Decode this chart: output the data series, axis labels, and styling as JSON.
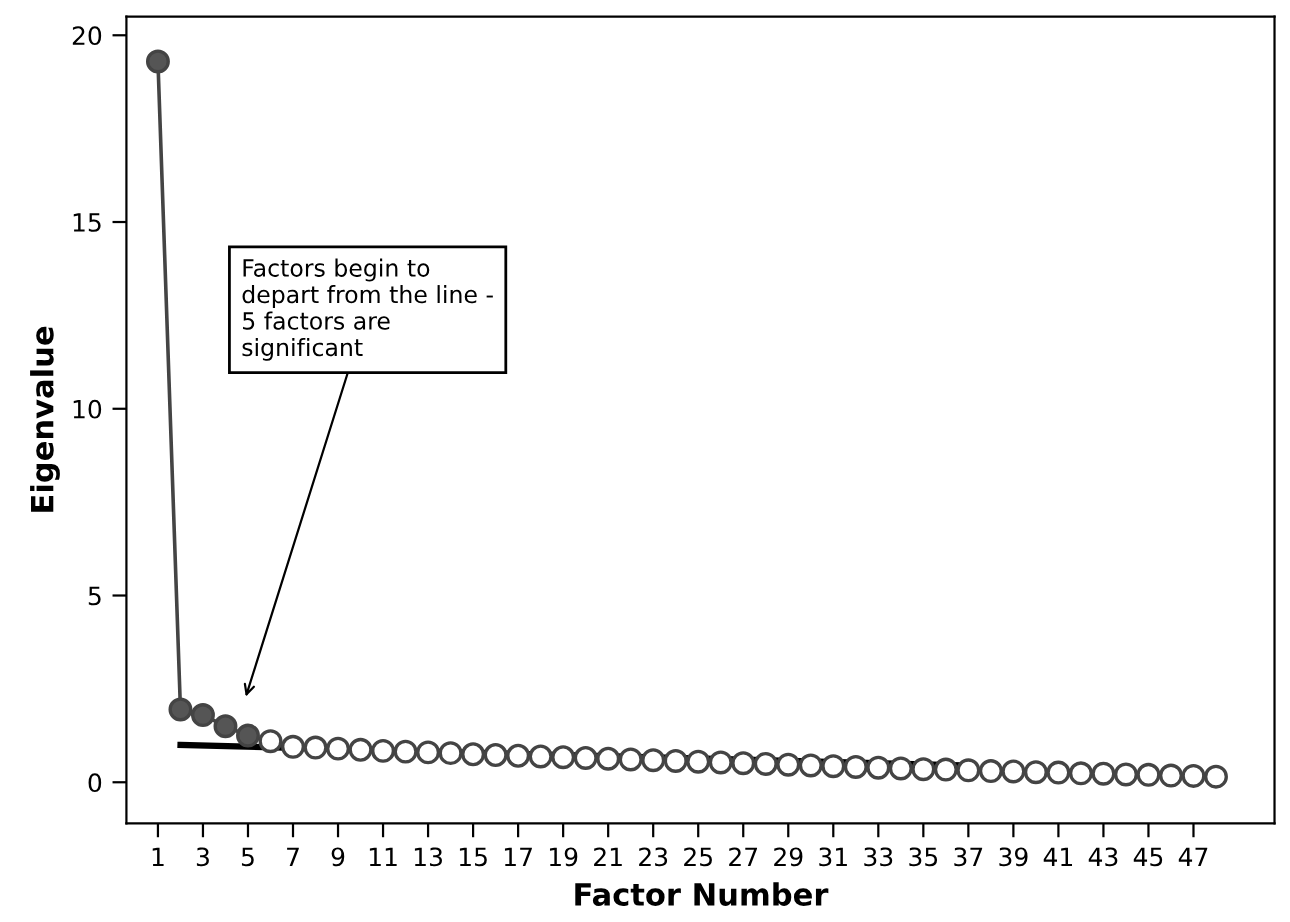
{
  "chart_data": {
    "type": "line",
    "xlabel": "Factor Number",
    "ylabel": "Eigenvalue",
    "x": [
      1,
      2,
      3,
      4,
      5,
      6,
      7,
      8,
      9,
      10,
      11,
      12,
      13,
      14,
      15,
      16,
      17,
      18,
      19,
      20,
      21,
      22,
      23,
      24,
      25,
      26,
      27,
      28,
      29,
      30,
      31,
      32,
      33,
      34,
      35,
      36,
      37,
      38,
      39,
      40,
      41,
      42,
      43,
      44,
      45,
      46,
      47,
      48
    ],
    "series": [
      {
        "color": "#444444",
        "marker": "circle",
        "colors": [
          "#555555",
          "#555555",
          "#555555",
          "#555555",
          "#555555",
          "#ffffff",
          "#ffffff",
          "#ffffff",
          "#ffffff",
          "#ffffff",
          "#ffffff",
          "#ffffff",
          "#ffffff",
          "#ffffff",
          "#ffffff",
          "#ffffff",
          "#ffffff",
          "#ffffff",
          "#ffffff",
          "#ffffff",
          "#ffffff",
          "#ffffff",
          "#ffffff",
          "#ffffff",
          "#ffffff",
          "#ffffff",
          "#ffffff",
          "#ffffff",
          "#ffffff",
          "#ffffff",
          "#ffffff",
          "#ffffff",
          "#ffffff",
          "#ffffff",
          "#ffffff",
          "#ffffff",
          "#ffffff",
          "#ffffff",
          "#ffffff",
          "#ffffff",
          "#ffffff",
          "#ffffff",
          "#ffffff",
          "#ffffff",
          "#ffffff",
          "#ffffff",
          "#ffffff",
          "#ffffff"
        ],
        "values": [
          19.3,
          1.95,
          1.8,
          1.5,
          1.25,
          1.1,
          0.95,
          0.93,
          0.9,
          0.87,
          0.84,
          0.82,
          0.8,
          0.78,
          0.75,
          0.73,
          0.71,
          0.69,
          0.67,
          0.65,
          0.63,
          0.61,
          0.59,
          0.57,
          0.55,
          0.53,
          0.51,
          0.49,
          0.47,
          0.45,
          0.43,
          0.41,
          0.39,
          0.37,
          0.35,
          0.34,
          0.32,
          0.3,
          0.29,
          0.27,
          0.26,
          0.24,
          0.23,
          0.21,
          0.2,
          0.18,
          0.17,
          0.15
        ]
      },
      {
        "type": "line",
        "color": "#000000",
        "marker": "none",
        "x": [
          2,
          37
        ],
        "values": [
          1.0,
          0.45
        ]
      }
    ],
    "xlim": [
      -0.4,
      50.6
    ],
    "ylim": [
      -1.1,
      20.5
    ],
    "xticks": [
      1,
      3,
      5,
      7,
      9,
      11,
      13,
      15,
      17,
      19,
      21,
      23,
      25,
      27,
      29,
      31,
      33,
      35,
      37,
      39,
      41,
      43,
      45,
      47
    ],
    "yticks": [
      0,
      5,
      10,
      15,
      20
    ],
    "grid": false,
    "annotations": [
      "Factors begin to\ndepart from the line -\n5 factors are\nsignificant"
    ]
  }
}
